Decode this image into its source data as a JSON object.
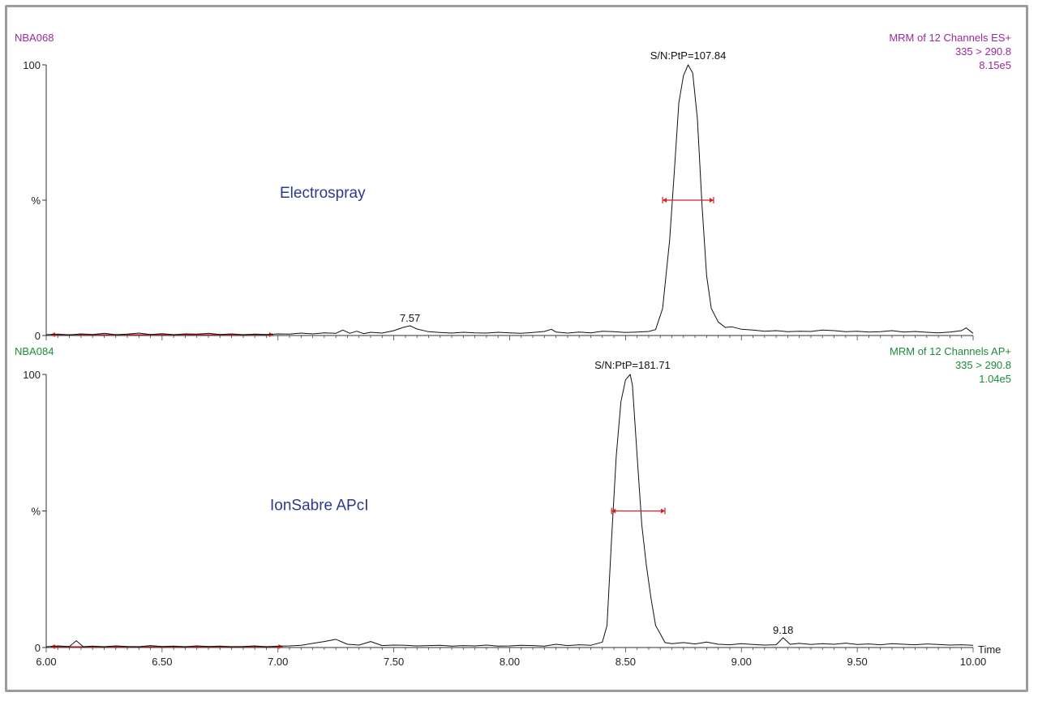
{
  "colors": {
    "purple": "#9a2a9a",
    "green": "#1f8a3a",
    "blue": "#2a3b8f",
    "red": "#d42020",
    "trace": "#111111",
    "frame": "#9a9ca0"
  },
  "chart_data": [
    {
      "type": "line",
      "sample_id": "NBA068",
      "method_lines": [
        "MRM of 12 Channels ES+",
        "335 > 290.8",
        "8.15e5"
      ],
      "source_label": "Electrospray",
      "xlim": [
        6.0,
        10.0
      ],
      "ylim": [
        0,
        100
      ],
      "y_ticks": [
        {
          "v": 0,
          "label": "0"
        },
        {
          "v": 50,
          "label": "%"
        },
        {
          "v": 100,
          "label": "100"
        }
      ],
      "peak_annotations": [
        {
          "x": 8.77,
          "y": 100,
          "label": "S/N:PtP=107.84"
        },
        {
          "x": 7.57,
          "y": 3,
          "label": "7.57"
        }
      ],
      "noise_region": [
        6.02,
        6.98
      ],
      "peak_width": [
        8.66,
        8.88
      ],
      "peak_width_y": 50,
      "x": [
        6.0,
        6.05,
        6.1,
        6.15,
        6.2,
        6.25,
        6.3,
        6.35,
        6.4,
        6.45,
        6.5,
        6.55,
        6.6,
        6.65,
        6.7,
        6.75,
        6.8,
        6.85,
        6.9,
        6.95,
        7.0,
        7.05,
        7.1,
        7.15,
        7.2,
        7.25,
        7.28,
        7.31,
        7.34,
        7.37,
        7.4,
        7.45,
        7.5,
        7.54,
        7.57,
        7.6,
        7.65,
        7.7,
        7.75,
        7.8,
        7.85,
        7.9,
        7.95,
        8.0,
        8.05,
        8.1,
        8.15,
        8.18,
        8.2,
        8.25,
        8.3,
        8.35,
        8.4,
        8.45,
        8.5,
        8.55,
        8.6,
        8.63,
        8.66,
        8.69,
        8.71,
        8.73,
        8.75,
        8.77,
        8.79,
        8.81,
        8.83,
        8.85,
        8.87,
        8.9,
        8.93,
        8.96,
        9.0,
        9.05,
        9.1,
        9.15,
        9.2,
        9.25,
        9.3,
        9.35,
        9.4,
        9.45,
        9.5,
        9.55,
        9.6,
        9.65,
        9.7,
        9.75,
        9.8,
        9.85,
        9.9,
        9.95,
        9.97,
        10.0
      ],
      "y": [
        0.3,
        0.5,
        0.2,
        0.6,
        0.4,
        0.8,
        0.3,
        0.5,
        0.9,
        0.4,
        0.7,
        0.3,
        0.6,
        0.5,
        0.8,
        0.4,
        0.6,
        0.3,
        0.5,
        0.4,
        0.6,
        0.5,
        0.9,
        0.6,
        1.0,
        0.8,
        2.0,
        0.8,
        1.6,
        0.7,
        1.2,
        0.9,
        1.8,
        3.0,
        3.6,
        2.4,
        1.4,
        1.1,
        0.9,
        1.2,
        1.0,
        0.9,
        1.2,
        1.0,
        0.8,
        1.1,
        1.5,
        2.3,
        1.3,
        0.9,
        1.3,
        1.0,
        1.6,
        1.4,
        1.1,
        1.3,
        1.5,
        2.2,
        10.0,
        35.0,
        60.0,
        86.0,
        96.0,
        100.0,
        97.0,
        80.0,
        48.0,
        22.0,
        10.0,
        5.0,
        3.0,
        3.2,
        2.3,
        2.0,
        1.6,
        1.8,
        1.4,
        1.6,
        1.5,
        2.0,
        1.8,
        1.4,
        1.6,
        1.3,
        1.4,
        1.8,
        1.3,
        1.5,
        1.2,
        1.0,
        1.3,
        1.8,
        2.8,
        0.8
      ]
    },
    {
      "type": "line",
      "sample_id": "NBA084",
      "method_lines": [
        "MRM of 12 Channels AP+",
        "335 > 290.8",
        "1.04e5"
      ],
      "source_label": "IonSabre APcI",
      "xlim": [
        6.0,
        10.0
      ],
      "ylim": [
        0,
        100
      ],
      "xlabel": "Time",
      "x_ticks": [
        {
          "v": 6.0,
          "label": "6.00"
        },
        {
          "v": 6.5,
          "label": "6.50"
        },
        {
          "v": 7.0,
          "label": "7.00"
        },
        {
          "v": 7.5,
          "label": "7.50"
        },
        {
          "v": 8.0,
          "label": "8.00"
        },
        {
          "v": 8.5,
          "label": "8.50"
        },
        {
          "v": 9.0,
          "label": "9.00"
        },
        {
          "v": 9.5,
          "label": "9.50"
        },
        {
          "v": 10.0,
          "label": "10.00"
        }
      ],
      "y_ticks": [
        {
          "v": 0,
          "label": "0"
        },
        {
          "v": 50,
          "label": "%"
        },
        {
          "v": 100,
          "label": "100"
        }
      ],
      "peak_annotations": [
        {
          "x": 8.53,
          "y": 100,
          "label": "S/N:PtP=181.71"
        },
        {
          "x": 9.18,
          "y": 3,
          "label": "9.18"
        }
      ],
      "noise_region": [
        6.02,
        7.02
      ],
      "peak_width": [
        8.44,
        8.67
      ],
      "peak_width_y": 50,
      "x": [
        6.0,
        6.05,
        6.1,
        6.13,
        6.16,
        6.2,
        6.25,
        6.3,
        6.35,
        6.4,
        6.45,
        6.5,
        6.55,
        6.6,
        6.65,
        6.7,
        6.75,
        6.8,
        6.85,
        6.9,
        6.95,
        7.0,
        7.05,
        7.1,
        7.15,
        7.2,
        7.25,
        7.3,
        7.35,
        7.4,
        7.45,
        7.5,
        7.55,
        7.6,
        7.65,
        7.7,
        7.75,
        7.8,
        7.85,
        7.9,
        7.95,
        8.0,
        8.05,
        8.1,
        8.15,
        8.2,
        8.25,
        8.3,
        8.35,
        8.4,
        8.42,
        8.44,
        8.46,
        8.48,
        8.5,
        8.52,
        8.53,
        8.55,
        8.57,
        8.59,
        8.61,
        8.63,
        8.65,
        8.67,
        8.7,
        8.75,
        8.8,
        8.85,
        8.9,
        8.95,
        9.0,
        9.05,
        9.1,
        9.15,
        9.18,
        9.21,
        9.25,
        9.3,
        9.35,
        9.4,
        9.45,
        9.5,
        9.55,
        9.6,
        9.65,
        9.7,
        9.75,
        9.8,
        9.85,
        9.9,
        9.95,
        10.0
      ],
      "y": [
        0.3,
        0.6,
        0.4,
        2.5,
        0.3,
        0.5,
        0.3,
        0.6,
        0.4,
        0.3,
        0.7,
        0.4,
        0.5,
        0.3,
        0.6,
        0.4,
        0.5,
        0.3,
        0.4,
        0.6,
        0.3,
        0.5,
        0.6,
        0.8,
        1.5,
        2.2,
        3.0,
        1.2,
        0.9,
        2.2,
        0.7,
        0.9,
        0.8,
        0.6,
        0.7,
        0.8,
        0.5,
        0.7,
        0.6,
        0.9,
        0.5,
        0.6,
        0.8,
        0.7,
        0.5,
        1.2,
        0.7,
        1.0,
        0.8,
        2.0,
        8.0,
        40.0,
        70.0,
        90.0,
        98.0,
        100.0,
        96.0,
        70.0,
        45.0,
        30.0,
        18.0,
        8.0,
        5.0,
        1.8,
        1.4,
        1.8,
        1.3,
        2.0,
        1.2,
        1.0,
        1.4,
        1.1,
        0.9,
        1.0,
        3.6,
        1.2,
        1.5,
        1.1,
        1.4,
        1.2,
        1.6,
        1.1,
        1.3,
        1.0,
        1.4,
        1.2,
        1.0,
        1.3,
        1.1,
        0.9,
        1.0,
        0.8
      ]
    }
  ]
}
